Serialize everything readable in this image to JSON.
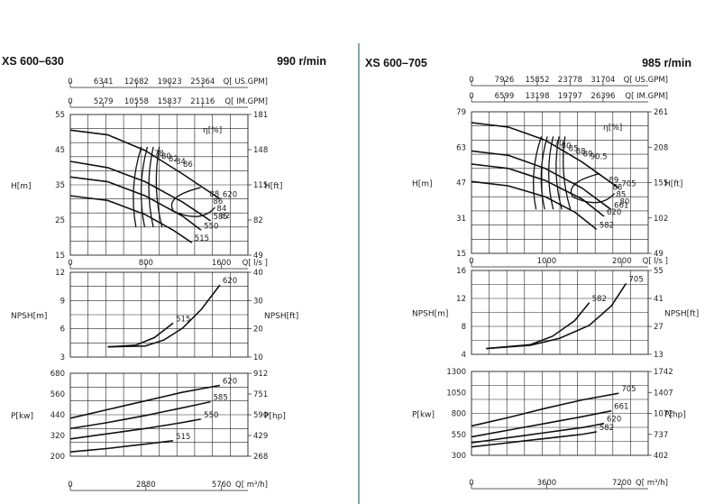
{
  "chart_data": [
    {
      "type": "line",
      "title": "XS 600–630",
      "speed": "990 r/min",
      "flow_scales": [
        {
          "unit": "Q[ US.GPM]",
          "ticks": [
            "0",
            "6341",
            "12682",
            "19023",
            "25364"
          ]
        },
        {
          "unit": "Q[ IM.GPM]",
          "ticks": [
            "0",
            "5279",
            "10558",
            "15837",
            "21116"
          ]
        },
        {
          "unit": "Q[ l/s ]",
          "ticks": [
            "0",
            "800",
            "1600"
          ]
        },
        {
          "unit": "Q[ m³/h]",
          "ticks": [
            "0",
            "2880",
            "5760"
          ]
        }
      ],
      "head": {
        "ylabel": "H[m]",
        "ylabel_right": "H[ft]",
        "efficiency_label": "η[%]",
        "xlim": [
          0,
          1900
        ],
        "ylim": [
          15,
          60
        ],
        "yticks": [
          "55",
          "45",
          "35",
          "25",
          "15"
        ],
        "yticks_right": [
          "181",
          "148",
          "115",
          "82",
          "49"
        ],
        "series": [
          {
            "name": "",
            "x": [
              0,
              400,
              800,
              1200,
              1600
            ],
            "y": [
              55,
              53.5,
              48.5,
              41,
              33
            ]
          },
          {
            "name": "",
            "x": [
              0,
              400,
              800,
              1200,
              1500
            ],
            "y": [
              45,
              43,
              38.5,
              32,
              26
            ]
          },
          {
            "name": "",
            "x": [
              0,
              400,
              800,
              1200,
              1400
            ],
            "y": [
              40,
              38.5,
              34,
              27.5,
              23
            ]
          },
          {
            "name": "",
            "x": [
              0,
              400,
              800,
              1100,
              1300
            ],
            "y": [
              34,
              32.5,
              28,
              23,
              19
            ]
          }
        ],
        "diameter_labels": [
          "620",
          "585",
          "550",
          "515"
        ],
        "efficiency_labels": [
          "78",
          "80",
          "82",
          "84",
          "86",
          "88",
          "86",
          "84",
          "82"
        ]
      },
      "npsh": {
        "ylabel": "NPSH[m]",
        "ylabel_right": "NPSH[ft]",
        "xlim": [
          0,
          1900
        ],
        "ylim": [
          3,
          13
        ],
        "yticks": [
          "12",
          "9",
          "6",
          "3"
        ],
        "yticks_right": [
          "40",
          "30",
          "20",
          "10"
        ],
        "series": [
          {
            "name": "",
            "x": [
              400,
              800,
              1000,
              1200,
              1400,
              1600
            ],
            "y": [
              4.2,
              4.3,
              5,
              6.4,
              8.6,
              11.5
            ]
          },
          {
            "name": "",
            "x": [
              400,
              700,
              900,
              1100
            ],
            "y": [
              4.2,
              4.4,
              5.3,
              7
            ]
          }
        ],
        "labels": [
          "620",
          "515"
        ]
      },
      "power": {
        "ylabel": "P[kw]",
        "ylabel_right": "P[hp]",
        "xlim": [
          0,
          1900
        ],
        "ylim": [
          200,
          680
        ],
        "yticks": [
          "680",
          "560",
          "440",
          "320",
          "200"
        ],
        "yticks_right": [
          "912",
          "751",
          "590",
          "429",
          "268"
        ],
        "series": [
          {
            "name": "",
            "x": [
              0,
              400,
              800,
              1200,
              1600
            ],
            "y": [
              420,
              470,
              520,
              570,
              610
            ]
          },
          {
            "name": "",
            "x": [
              0,
              400,
              800,
              1200,
              1500
            ],
            "y": [
              360,
              395,
              435,
              480,
              515
            ]
          },
          {
            "name": "",
            "x": [
              0,
              400,
              800,
              1200,
              1400
            ],
            "y": [
              300,
              330,
              360,
              395,
              415
            ]
          },
          {
            "name": "",
            "x": [
              0,
              400,
              800,
              1100
            ],
            "y": [
              225,
              245,
              270,
              290
            ]
          }
        ],
        "labels": [
          "620",
          "585",
          "550",
          "515"
        ]
      }
    },
    {
      "type": "line",
      "title": "XS 600–705",
      "speed": "985 r/min",
      "flow_scales": [
        {
          "unit": "Q[ US.GPM]",
          "ticks": [
            "0",
            "7926",
            "15852",
            "23778",
            "31704"
          ]
        },
        {
          "unit": "Q[ IM.GPM]",
          "ticks": [
            "0",
            "6599",
            "13198",
            "19797",
            "26396"
          ]
        },
        {
          "unit": "Q[ l/s ]",
          "ticks": [
            "0",
            "1000",
            "2000"
          ]
        },
        {
          "unit": "Q[ m³/h]",
          "ticks": [
            "0",
            "3600",
            "7200"
          ]
        }
      ],
      "head": {
        "ylabel": "H[m]",
        "ylabel_right": "H[ft]",
        "efficiency_label": "η[%]",
        "xlim": [
          0,
          2400
        ],
        "ylim": [
          15,
          80
        ],
        "yticks": [
          "79",
          "63",
          "47",
          "31",
          "15"
        ],
        "yticks_right": [
          "261",
          "208",
          "155",
          "102",
          "49"
        ],
        "series": [
          {
            "name": "",
            "x": [
              0,
              500,
              1000,
              1500,
              2000
            ],
            "y": [
              75,
              73,
              67,
              57,
              45
            ]
          },
          {
            "name": "",
            "x": [
              0,
              500,
              1000,
              1500,
              1900
            ],
            "y": [
              62,
              60,
              54,
              45,
              35
            ]
          },
          {
            "name": "",
            "x": [
              0,
              500,
              1000,
              1500,
              1800
            ],
            "y": [
              56,
              54,
              48.5,
              40,
              32
            ]
          },
          {
            "name": "",
            "x": [
              0,
              500,
              1000,
              1400,
              1700
            ],
            "y": [
              48,
              46,
              41,
              34,
              26
            ]
          }
        ],
        "diameter_labels": [
          "705",
          "661",
          "620",
          "582"
        ],
        "efficiency_labels": [
          "70",
          "80",
          "85",
          "88",
          "89",
          "90.5",
          "89",
          "88",
          "85",
          "80"
        ]
      },
      "npsh": {
        "ylabel": "NPSH[m]",
        "ylabel_right": "NPSH[ft]",
        "xlim": [
          0,
          2400
        ],
        "ylim": [
          4,
          17
        ],
        "yticks": [
          "16",
          "12",
          "8",
          "4"
        ],
        "yticks_right": [
          "55",
          "41",
          "27",
          "13"
        ],
        "series": [
          {
            "name": "",
            "x": [
              200,
              800,
              1200,
              1600,
              1900,
              2100
            ],
            "y": [
              4.9,
              5.4,
              6.5,
              8.5,
              11.5,
              15
            ]
          },
          {
            "name": "",
            "x": [
              200,
              800,
              1100,
              1400,
              1600
            ],
            "y": [
              4.9,
              5.5,
              6.8,
              9.2,
              12
            ]
          }
        ],
        "labels": [
          "705",
          "582"
        ]
      },
      "power": {
        "ylabel": "P[kw]",
        "ylabel_right": "P[hp]",
        "xlim": [
          0,
          2400
        ],
        "ylim": [
          300,
          1300
        ],
        "yticks": [
          "1300",
          "1050",
          "800",
          "550",
          "300"
        ],
        "yticks_right": [
          "1742",
          "1407",
          "1072",
          "737",
          "402"
        ],
        "series": [
          {
            "name": "",
            "x": [
              0,
              500,
              1000,
              1500,
              2000
            ],
            "y": [
              650,
              750,
              860,
              960,
              1040
            ]
          },
          {
            "name": "",
            "x": [
              0,
              500,
              1000,
              1500,
              1900
            ],
            "y": [
              520,
              600,
              680,
              760,
              830
            ]
          },
          {
            "name": "",
            "x": [
              0,
              500,
              1000,
              1500,
              1800
            ],
            "y": [
              450,
              510,
              570,
              630,
              680
            ]
          },
          {
            "name": "",
            "x": [
              0,
              500,
              1000,
              1500,
              1700
            ],
            "y": [
              400,
              450,
              500,
              550,
              580
            ]
          }
        ],
        "labels": [
          "705",
          "661",
          "620",
          "582"
        ]
      }
    }
  ]
}
